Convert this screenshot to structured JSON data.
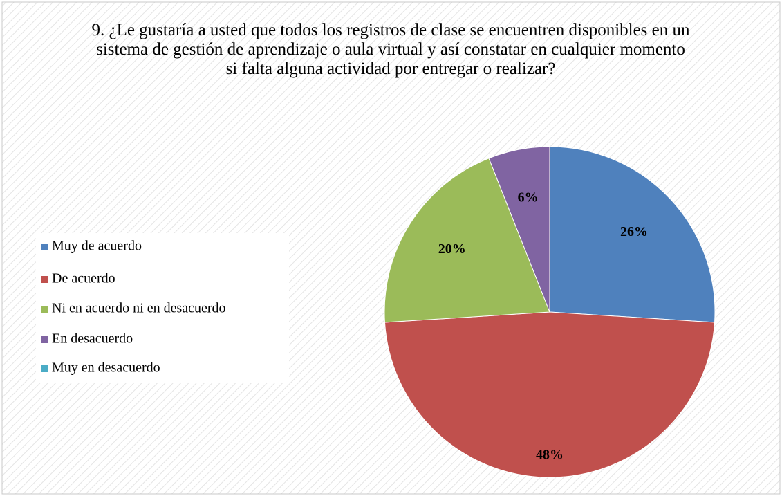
{
  "chart_data": {
    "type": "pie",
    "title": "9. ¿Le gustaría a usted que todos los registros de clase se encuentren disponibles en un sistema de gestión de aprendizaje o aula virtual y así constatar en cualquier momento si falta alguna actividad por entregar o realizar?",
    "categories": [
      "Muy de acuerdo",
      "De acuerdo",
      "Ni en acuerdo ni en desacuerdo",
      "En desacuerdo",
      "Muy en desacuerdo"
    ],
    "values": [
      26,
      48,
      20,
      6,
      0
    ],
    "value_labels": [
      "26%",
      "48%",
      "20%",
      "6%",
      null
    ],
    "colors": [
      "#4f81bd",
      "#c0504d",
      "#9bbb59",
      "#8064a2",
      "#4bacc6"
    ],
    "legend": "left"
  }
}
